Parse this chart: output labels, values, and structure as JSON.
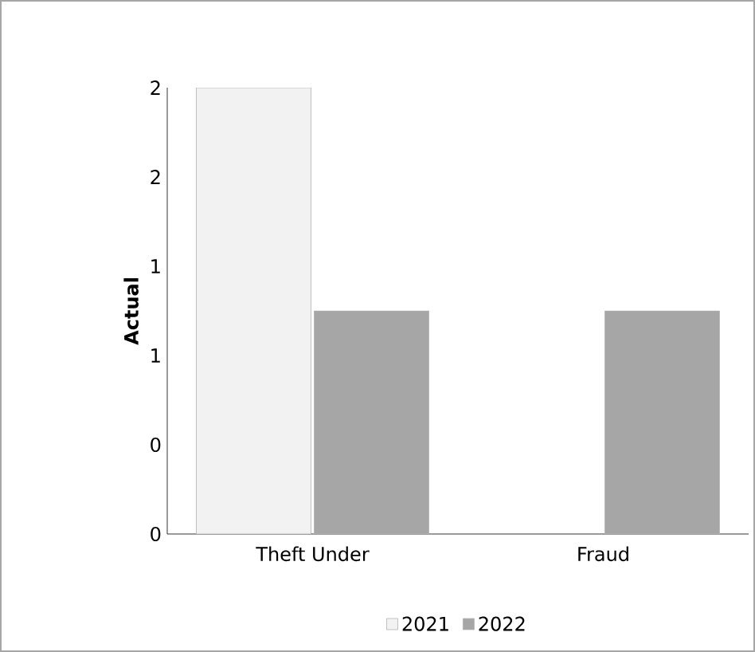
{
  "chart_data": {
    "type": "bar",
    "ylabel": "Actual",
    "categories": [
      "Theft Under",
      "Fraud"
    ],
    "series": [
      {
        "name": "2021",
        "color": "#f2f2f2",
        "values": [
          2,
          null
        ]
      },
      {
        "name": "2022",
        "color": "#a6a6a6",
        "values": [
          1,
          1
        ]
      }
    ],
    "ylim": [
      0,
      2
    ],
    "yticks": [
      {
        "value": 0,
        "label": "0"
      },
      {
        "value": 0.4,
        "label": "0"
      },
      {
        "value": 0.8,
        "label": "1"
      },
      {
        "value": 1.2,
        "label": "1"
      },
      {
        "value": 1.6,
        "label": "2"
      },
      {
        "value": 2,
        "label": "2"
      }
    ],
    "legend": "bottom"
  }
}
